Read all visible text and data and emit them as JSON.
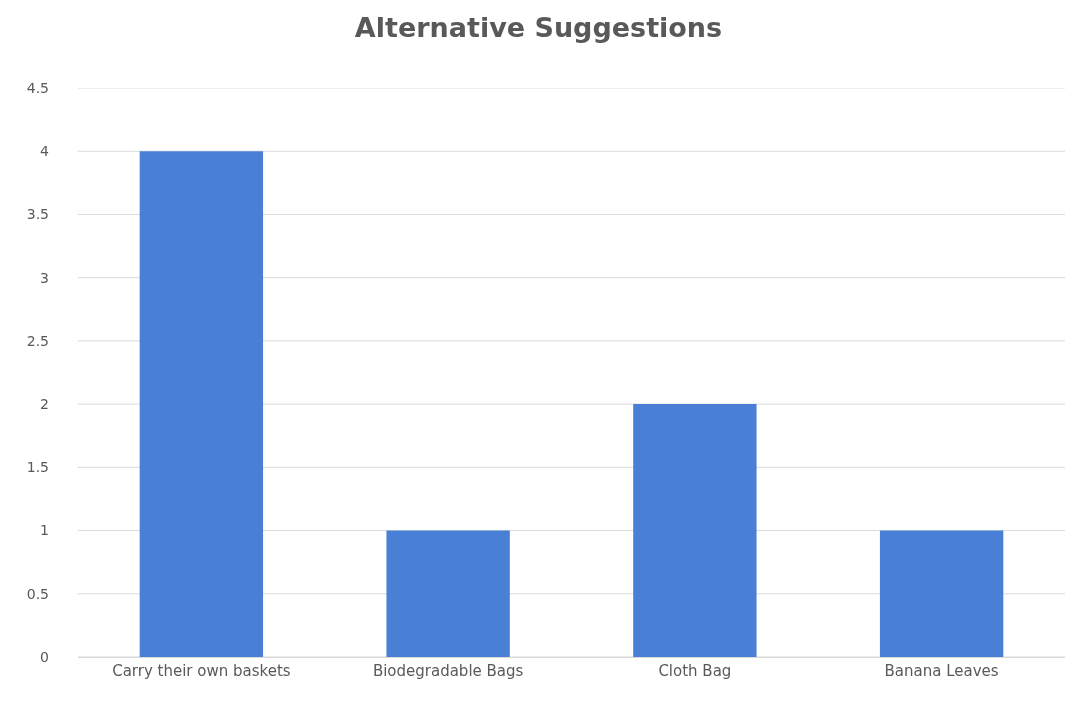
{
  "chart_data": {
    "type": "bar",
    "title": "Alternative Suggestions",
    "categories": [
      "Carry their own baskets",
      "Biodegradable Bags",
      "Cloth Bag",
      "Banana Leaves"
    ],
    "values": [
      4,
      1,
      2,
      1
    ],
    "color": "#4a7fd6",
    "ylim": [
      0,
      4.5
    ],
    "yticks": [
      0,
      0.5,
      1,
      1.5,
      2,
      2.5,
      3,
      3.5,
      4,
      4.5
    ],
    "grid": "y"
  }
}
